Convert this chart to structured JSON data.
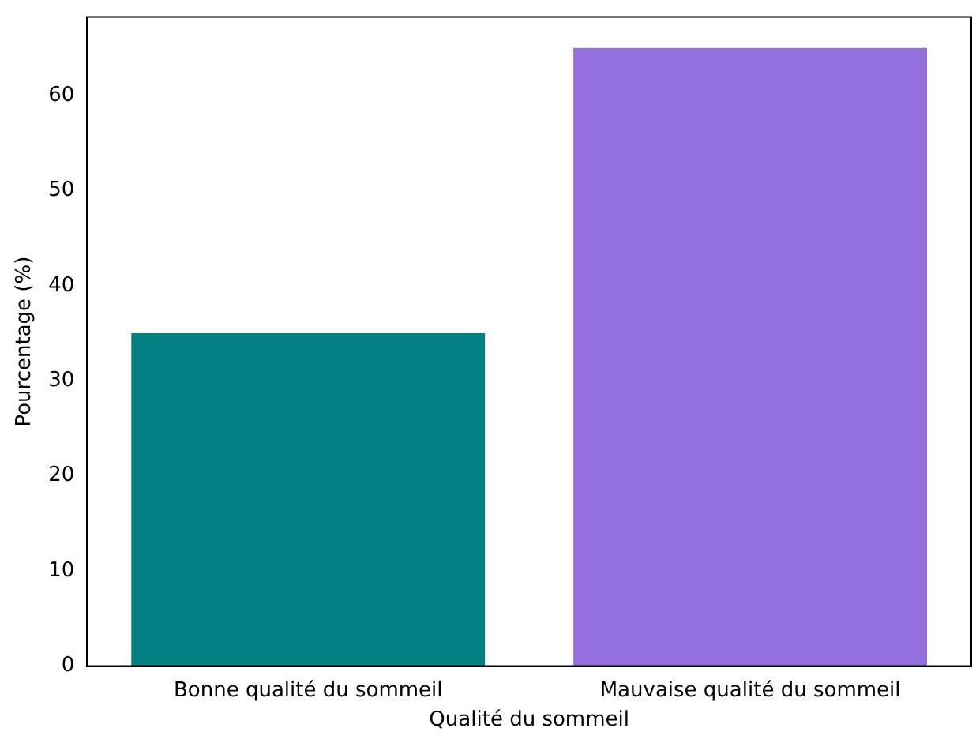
{
  "chart_data": {
    "type": "bar",
    "xlabel": "Qualité du sommeil",
    "ylabel": "Pourcentage (%)",
    "categories": [
      "Bonne qualité du sommeil",
      "Mauvaise qualité du sommeil"
    ],
    "values": [
      35,
      65
    ],
    "colors": [
      "#008080",
      "#9370db"
    ],
    "ylim": [
      0,
      68.25
    ],
    "yticks": [
      0,
      10,
      20,
      30,
      40,
      50,
      60
    ],
    "grid": false,
    "legend": false
  }
}
